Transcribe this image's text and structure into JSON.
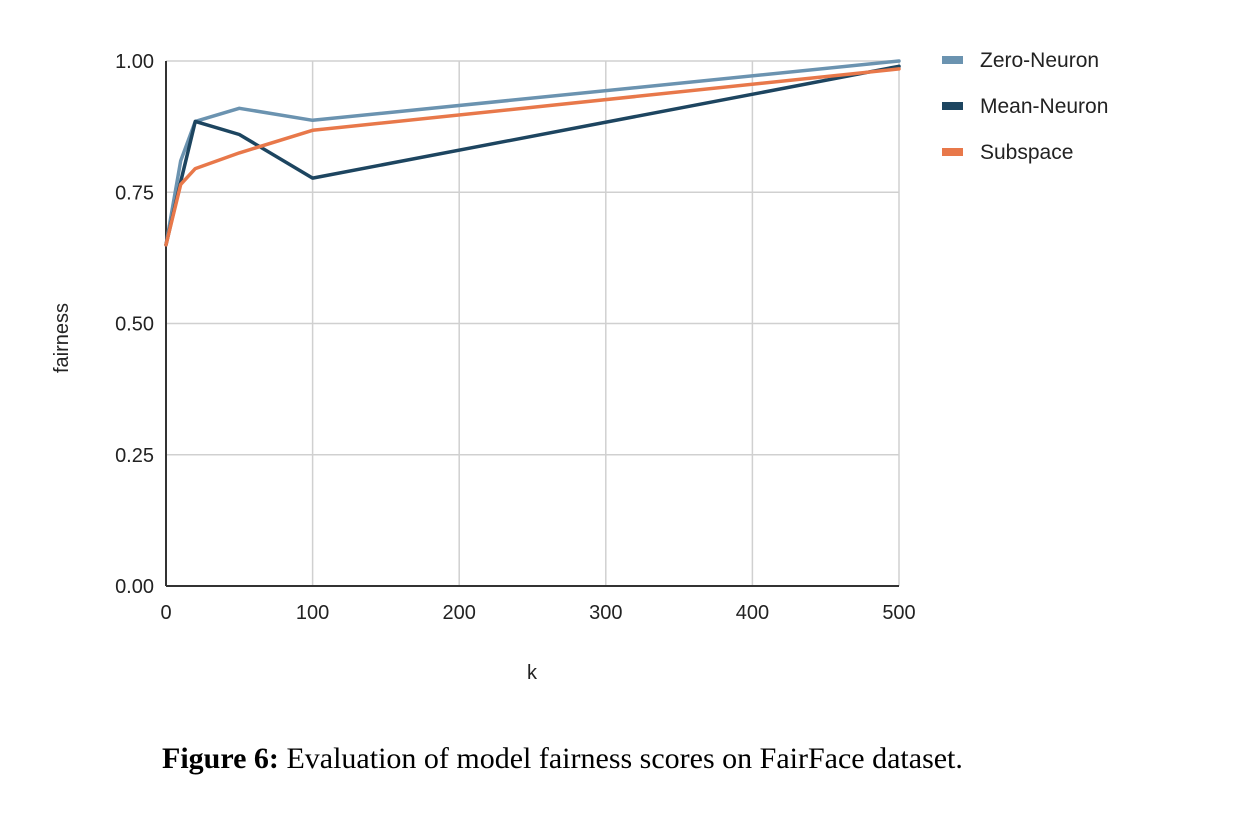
{
  "caption": {
    "label": "Figure 6:",
    "text": " Evaluation of model fairness scores on FairFace dataset."
  },
  "chart_data": {
    "type": "line",
    "title": "",
    "xlabel": "k",
    "ylabel": "fairness",
    "xlim": [
      0,
      500
    ],
    "ylim": [
      0,
      1
    ],
    "x_ticks": [
      {
        "value": 0,
        "label": "0"
      },
      {
        "value": 100,
        "label": "100"
      },
      {
        "value": 200,
        "label": "200"
      },
      {
        "value": 300,
        "label": "300"
      },
      {
        "value": 400,
        "label": "400"
      },
      {
        "value": 500,
        "label": "500"
      }
    ],
    "y_ticks": [
      {
        "value": 0,
        "label": "0.00"
      },
      {
        "value": 0.25,
        "label": "0.25"
      },
      {
        "value": 0.5,
        "label": "0.50"
      },
      {
        "value": 0.75,
        "label": "0.75"
      },
      {
        "value": 1.0,
        "label": "1.00"
      }
    ],
    "grid": true,
    "legend_position": "right",
    "series": [
      {
        "name": "Zero-Neuron",
        "color": "#6b93b0",
        "points": [
          [
            0,
            0.65
          ],
          [
            10,
            0.81
          ],
          [
            20,
            0.885
          ],
          [
            50,
            0.91
          ],
          [
            100,
            0.887
          ],
          [
            500,
            1.0
          ]
        ]
      },
      {
        "name": "Mean-Neuron",
        "color": "#1d4560",
        "points": [
          [
            0,
            0.65
          ],
          [
            10,
            0.77
          ],
          [
            20,
            0.885
          ],
          [
            50,
            0.86
          ],
          [
            100,
            0.777
          ],
          [
            500,
            0.99
          ]
        ]
      },
      {
        "name": "Subspace",
        "color": "#e8784a",
        "points": [
          [
            0,
            0.65
          ],
          [
            10,
            0.765
          ],
          [
            20,
            0.795
          ],
          [
            50,
            0.825
          ],
          [
            100,
            0.868
          ],
          [
            500,
            0.985
          ]
        ]
      }
    ]
  }
}
